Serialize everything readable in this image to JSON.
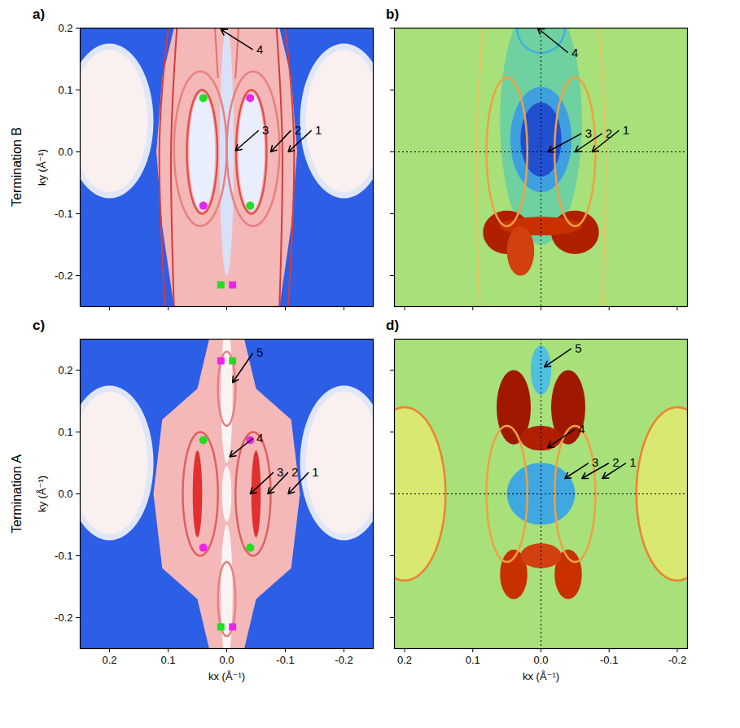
{
  "row_labels": [
    "Termination B",
    "Termination A"
  ],
  "chart_data": [
    {
      "type": "map",
      "title": "a)",
      "y_label": "ky (Å⁻¹)",
      "tick_labels": "y",
      "color": "#2d5ee6",
      "xlim": [
        0.25,
        -0.25
      ],
      "ylim": [
        -0.25,
        0.2
      ],
      "xticks": [
        0.2,
        0.1,
        {
          "value": 0,
          "label": "0.0"
        },
        -0.1,
        -0.2
      ],
      "yticks": [
        -0.2,
        -0.1,
        {
          "value": 0,
          "label": "0.0"
        },
        0.1,
        0.2
      ],
      "polygons": [
        {
          "x": [
            0.09,
            0.11,
            0.12,
            0.11,
            0.09,
            -0.09,
            -0.11,
            -0.12,
            -0.11,
            -0.09
          ],
          "y": [
            0.2,
            0.12,
            0,
            -0.12,
            -0.25,
            -0.25,
            -0.12,
            0,
            0.12,
            0.2
          ],
          "color": "#f4b8b8"
        }
      ],
      "ellipses": [
        {
          "cx": 0.2,
          "cy": 0.05,
          "rx": 0.075,
          "ry": 0.125,
          "color": "#dfe6f8"
        },
        {
          "cx": -0.2,
          "cy": 0.05,
          "rx": 0.075,
          "ry": 0.125,
          "color": "#dfe6f8"
        },
        {
          "cx": 0.2,
          "cy": 0.05,
          "rx": 0.065,
          "ry": 0.115,
          "color": "#fbf0f0"
        },
        {
          "cx": -0.2,
          "cy": 0.05,
          "rx": 0.065,
          "ry": 0.115,
          "color": "#fbf0f0"
        },
        {
          "cx": 0.042,
          "cy": 0,
          "rx": 0.022,
          "ry": 0.095,
          "color": "#e8eefb"
        },
        {
          "cx": -0.042,
          "cy": 0,
          "rx": 0.022,
          "ry": 0.095,
          "color": "#e8eefb"
        },
        {
          "cx": 0,
          "cy": 0,
          "rx": 0.012,
          "ry": 0.2,
          "color": "#d8e1f7"
        }
      ],
      "rings": [
        {
          "cx": 0.042,
          "cy": 0,
          "rx": 0.026,
          "ry": 0.1,
          "color": "#e05050"
        },
        {
          "cx": -0.042,
          "cy": 0,
          "rx": 0.026,
          "ry": 0.1,
          "color": "#e05050"
        },
        {
          "cx": 0.045,
          "cy": 0.005,
          "rx": 0.045,
          "ry": 0.125,
          "color": "#e88080"
        },
        {
          "cx": -0.045,
          "cy": 0.005,
          "rx": 0.045,
          "ry": 0.125,
          "color": "#e88080"
        }
      ],
      "curves": [
        {
          "x": [
            0.085,
            0.095,
            0.09
          ],
          "y": [
            0.2,
            0,
            -0.25
          ],
          "color": "#d83a3a"
        },
        {
          "x": [
            -0.085,
            -0.095,
            -0.09
          ],
          "y": [
            0.2,
            0,
            -0.25
          ],
          "color": "#d83a3a"
        },
        {
          "x": [
            0.1,
            0.115,
            0.105
          ],
          "y": [
            0.2,
            0,
            -0.25
          ],
          "color": "#d83a3a"
        },
        {
          "x": [
            -0.1,
            -0.115,
            -0.105
          ],
          "y": [
            0.2,
            0,
            -0.25
          ],
          "color": "#d83a3a"
        },
        {
          "x": [
            0.02,
            0.015
          ],
          "y": [
            0.2,
            0.12
          ],
          "color": "#e07070"
        },
        {
          "x": [
            -0.02,
            -0.015
          ],
          "y": [
            0.2,
            0.12
          ],
          "color": "#e07070"
        }
      ],
      "markers": [
        {
          "x": 0.04,
          "y": 0.087,
          "color": "#22dd22",
          "marker": "circle"
        },
        {
          "x": -0.04,
          "y": 0.087,
          "color": "#ee22ee",
          "marker": "circle"
        },
        {
          "x": 0.04,
          "y": -0.087,
          "color": "#ee22ee",
          "marker": "circle"
        },
        {
          "x": -0.04,
          "y": -0.087,
          "color": "#22dd22",
          "marker": "circle"
        },
        {
          "x": 0.01,
          "y": -0.215,
          "color": "#22dd22",
          "marker": "square"
        },
        {
          "x": -0.01,
          "y": -0.215,
          "color": "#ee22ee",
          "marker": "square"
        }
      ],
      "annotations": [
        {
          "text": "4",
          "x": 0.01,
          "y": 0.198,
          "tx": -0.045,
          "ty": 0.165
        },
        {
          "text": "3",
          "x": -0.015,
          "y": 0.002,
          "tx": -0.055,
          "ty": 0.035
        },
        {
          "text": "2",
          "x": -0.075,
          "y": 0,
          "tx": -0.11,
          "ty": 0.035
        },
        {
          "text": "1",
          "x": -0.105,
          "y": 0,
          "tx": -0.145,
          "ty": 0.035
        }
      ]
    },
    {
      "type": "map",
      "title": "b)",
      "tick_labels": false,
      "color": "#a8e07a",
      "xlim": [
        0.215,
        -0.215
      ],
      "ylim": [
        -0.25,
        0.2
      ],
      "xticks": [
        0.2,
        0.1,
        {
          "value": 0,
          "label": "0.0"
        },
        -0.1,
        -0.2
      ],
      "yticks": [
        -0.2,
        -0.1,
        {
          "value": 0,
          "label": "0.0"
        },
        0.1,
        0.2
      ],
      "rules_x": [
        0
      ],
      "rules_y": [
        0
      ],
      "ellipses": [
        {
          "cx": 0,
          "cy": 0.05,
          "rx": 0.06,
          "ry": 0.2,
          "color": "#6fd0a0"
        },
        {
          "cx": 0,
          "cy": 0.02,
          "rx": 0.045,
          "ry": 0.085,
          "color": "#3fa0e0"
        },
        {
          "cx": 0,
          "cy": 0.02,
          "rx": 0.03,
          "ry": 0.06,
          "color": "#2050d0"
        },
        {
          "cx": 0.05,
          "cy": -0.13,
          "rx": 0.035,
          "ry": 0.035,
          "color": "#b02000"
        },
        {
          "cx": -0.05,
          "cy": -0.13,
          "rx": 0.035,
          "ry": 0.035,
          "color": "#b02000"
        },
        {
          "cx": 0,
          "cy": -0.12,
          "rx": 0.06,
          "ry": 0.015,
          "color": "#c83000"
        },
        {
          "cx": 0.03,
          "cy": -0.16,
          "rx": 0.02,
          "ry": 0.04,
          "color": "#d04010"
        }
      ],
      "rings": [
        {
          "cx": 0.05,
          "cy": 0,
          "rx": 0.03,
          "ry": 0.12,
          "color": "#f0a040"
        },
        {
          "cx": -0.05,
          "cy": 0,
          "rx": 0.03,
          "ry": 0.12,
          "color": "#f0a040"
        },
        {
          "cx": 0,
          "cy": 0.2,
          "rx": 0.035,
          "ry": 0.04,
          "color": "#40b0e0"
        }
      ],
      "curves": [
        {
          "x": [
            0.085,
            0.095,
            0.09
          ],
          "y": [
            0.2,
            0,
            -0.25
          ],
          "color": "#f0c060"
        },
        {
          "x": [
            -0.085,
            -0.095,
            -0.09
          ],
          "y": [
            0.2,
            0,
            -0.25
          ],
          "color": "#f0c060"
        }
      ],
      "annotations": [
        {
          "text": "4",
          "x": 0.005,
          "y": 0.2,
          "tx": -0.04,
          "ty": 0.16
        },
        {
          "text": "3",
          "x": -0.01,
          "y": 0,
          "tx": -0.06,
          "ty": 0.03
        },
        {
          "text": "2",
          "x": -0.05,
          "y": 0,
          "tx": -0.09,
          "ty": 0.03
        },
        {
          "text": "1",
          "x": -0.075,
          "y": 0,
          "tx": -0.115,
          "ty": 0.035
        }
      ]
    },
    {
      "type": "map",
      "title": "c)",
      "x_label": "kx (Å⁻¹)",
      "y_label": "ky (Å⁻¹)",
      "tick_labels": true,
      "color": "#2d5ee6",
      "xlim": [
        0.25,
        -0.25
      ],
      "ylim": [
        -0.25,
        0.25
      ],
      "xticks": [
        0.2,
        0.1,
        {
          "value": 0,
          "label": "0.0"
        },
        -0.1,
        -0.2
      ],
      "yticks": [
        -0.2,
        -0.1,
        {
          "value": 0,
          "label": "0.0"
        },
        0.1,
        0.2
      ],
      "polygons": [
        {
          "x": [
            0.03,
            0.05,
            0.11,
            0.125,
            0.11,
            0.05,
            0.03,
            -0.03,
            -0.05,
            -0.11,
            -0.125,
            -0.11,
            -0.05,
            -0.03
          ],
          "y": [
            0.25,
            0.17,
            0.12,
            0,
            -0.12,
            -0.17,
            -0.25,
            -0.25,
            -0.17,
            -0.12,
            0,
            0.12,
            0.17,
            0.25
          ],
          "color": "#f4b8b8"
        }
      ],
      "ellipses": [
        {
          "cx": 0.2,
          "cy": 0.05,
          "rx": 0.075,
          "ry": 0.125,
          "color": "#dfe6f8"
        },
        {
          "cx": -0.2,
          "cy": 0.05,
          "rx": 0.075,
          "ry": 0.125,
          "color": "#dfe6f8"
        },
        {
          "cx": 0.2,
          "cy": 0.05,
          "rx": 0.065,
          "ry": 0.115,
          "color": "#fbf0f0"
        },
        {
          "cx": -0.2,
          "cy": 0.05,
          "rx": 0.065,
          "ry": 0.115,
          "color": "#fbf0f0"
        },
        {
          "cx": 0,
          "cy": 0.16,
          "rx": 0.01,
          "ry": 0.11,
          "color": "#f8f4f4"
        },
        {
          "cx": 0,
          "cy": -0.16,
          "rx": 0.01,
          "ry": 0.11,
          "color": "#f8f4f4"
        },
        {
          "cx": 0,
          "cy": 0,
          "rx": 0.008,
          "ry": 0.045,
          "color": "#f8f4f4"
        },
        {
          "cx": 0.05,
          "cy": 0,
          "rx": 0.008,
          "ry": 0.07,
          "color": "#e03030"
        },
        {
          "cx": -0.05,
          "cy": 0,
          "rx": 0.008,
          "ry": 0.07,
          "color": "#e03030"
        }
      ],
      "rings": [
        {
          "cx": 0.045,
          "cy": 0,
          "rx": 0.03,
          "ry": 0.1,
          "color": "#e06060"
        },
        {
          "cx": -0.045,
          "cy": 0,
          "rx": 0.03,
          "ry": 0.1,
          "color": "#e06060"
        },
        {
          "cx": 0,
          "cy": 0.17,
          "rx": 0.015,
          "ry": 0.06,
          "color": "#e88080"
        },
        {
          "cx": 0,
          "cy": -0.17,
          "rx": 0.015,
          "ry": 0.06,
          "color": "#e88080"
        }
      ],
      "markers": [
        {
          "x": 0.04,
          "y": 0.087,
          "color": "#22dd22",
          "marker": "circle"
        },
        {
          "x": -0.04,
          "y": 0.087,
          "color": "#ee22ee",
          "marker": "circle"
        },
        {
          "x": 0.04,
          "y": -0.087,
          "color": "#ee22ee",
          "marker": "circle"
        },
        {
          "x": -0.04,
          "y": -0.087,
          "color": "#22dd22",
          "marker": "circle"
        },
        {
          "x": 0.01,
          "y": 0.215,
          "color": "#ee22ee",
          "marker": "square"
        },
        {
          "x": -0.01,
          "y": 0.215,
          "color": "#22dd22",
          "marker": "square"
        },
        {
          "x": 0.01,
          "y": -0.215,
          "color": "#22dd22",
          "marker": "square"
        },
        {
          "x": -0.01,
          "y": -0.215,
          "color": "#ee22ee",
          "marker": "square"
        }
      ],
      "annotations": [
        {
          "text": "5",
          "x": -0.01,
          "y": 0.18,
          "tx": -0.045,
          "ty": 0.228
        },
        {
          "text": "4",
          "x": -0.005,
          "y": 0.06,
          "tx": -0.045,
          "ty": 0.09
        },
        {
          "text": "3",
          "x": -0.04,
          "y": 0,
          "tx": -0.08,
          "ty": 0.035
        },
        {
          "text": "2",
          "x": -0.07,
          "y": 0,
          "tx": -0.105,
          "ty": 0.035
        },
        {
          "text": "1",
          "x": -0.105,
          "y": 0,
          "tx": -0.14,
          "ty": 0.035
        }
      ]
    },
    {
      "type": "map",
      "title": "d)",
      "x_label": "kx (Å⁻¹)",
      "tick_labels": "x",
      "color": "#a8e07a",
      "xlim": [
        0.215,
        -0.215
      ],
      "ylim": [
        -0.25,
        0.25
      ],
      "xticks": [
        0.2,
        0.1,
        {
          "value": 0,
          "label": "0.0"
        },
        -0.1,
        -0.2
      ],
      "yticks": [
        -0.2,
        -0.1,
        {
          "value": 0,
          "label": "0.0"
        },
        0.1,
        0.2
      ],
      "rules_x": [
        0
      ],
      "rules_y": [
        0
      ],
      "ellipses": [
        {
          "cx": 0.2,
          "cy": 0,
          "rx": 0.06,
          "ry": 0.14,
          "color": "#d8e870"
        },
        {
          "cx": -0.2,
          "cy": 0,
          "rx": 0.06,
          "ry": 0.14,
          "color": "#d8e870"
        },
        {
          "cx": 0,
          "cy": 0,
          "rx": 0.05,
          "ry": 0.05,
          "color": "#40a8e0"
        },
        {
          "cx": 0.04,
          "cy": 0.14,
          "rx": 0.025,
          "ry": 0.06,
          "color": "#a01800"
        },
        {
          "cx": -0.04,
          "cy": 0.14,
          "rx": 0.025,
          "ry": 0.06,
          "color": "#a01800"
        },
        {
          "cx": 0,
          "cy": 0.09,
          "rx": 0.03,
          "ry": 0.02,
          "color": "#b02000"
        },
        {
          "cx": 0.04,
          "cy": -0.13,
          "rx": 0.02,
          "ry": 0.04,
          "color": "#c83000"
        },
        {
          "cx": -0.04,
          "cy": -0.13,
          "rx": 0.02,
          "ry": 0.04,
          "color": "#c83000"
        },
        {
          "cx": 0,
          "cy": -0.1,
          "rx": 0.03,
          "ry": 0.02,
          "color": "#d04010"
        },
        {
          "cx": 0,
          "cy": 0.2,
          "rx": 0.015,
          "ry": 0.04,
          "color": "#50c0e0"
        }
      ],
      "rings": [
        {
          "cx": 0.2,
          "cy": 0,
          "rx": 0.06,
          "ry": 0.14,
          "color": "#f08030"
        },
        {
          "cx": -0.2,
          "cy": 0,
          "rx": 0.06,
          "ry": 0.14,
          "color": "#f08030"
        },
        {
          "cx": 0.05,
          "cy": 0,
          "rx": 0.03,
          "ry": 0.11,
          "color": "#f0a040"
        },
        {
          "cx": -0.05,
          "cy": 0,
          "rx": 0.03,
          "ry": 0.11,
          "color": "#f0a040"
        }
      ],
      "annotations": [
        {
          "text": "5",
          "x": -0.005,
          "y": 0.205,
          "tx": -0.045,
          "ty": 0.235
        },
        {
          "text": "4",
          "x": -0.01,
          "y": 0.075,
          "tx": -0.05,
          "ty": 0.105
        },
        {
          "text": "3",
          "x": -0.035,
          "y": 0.025,
          "tx": -0.07,
          "ty": 0.05
        },
        {
          "text": "2",
          "x": -0.06,
          "y": 0.025,
          "tx": -0.1,
          "ty": 0.05
        },
        {
          "text": "1",
          "x": -0.09,
          "y": 0.025,
          "tx": -0.125,
          "ty": 0.05
        }
      ]
    }
  ]
}
